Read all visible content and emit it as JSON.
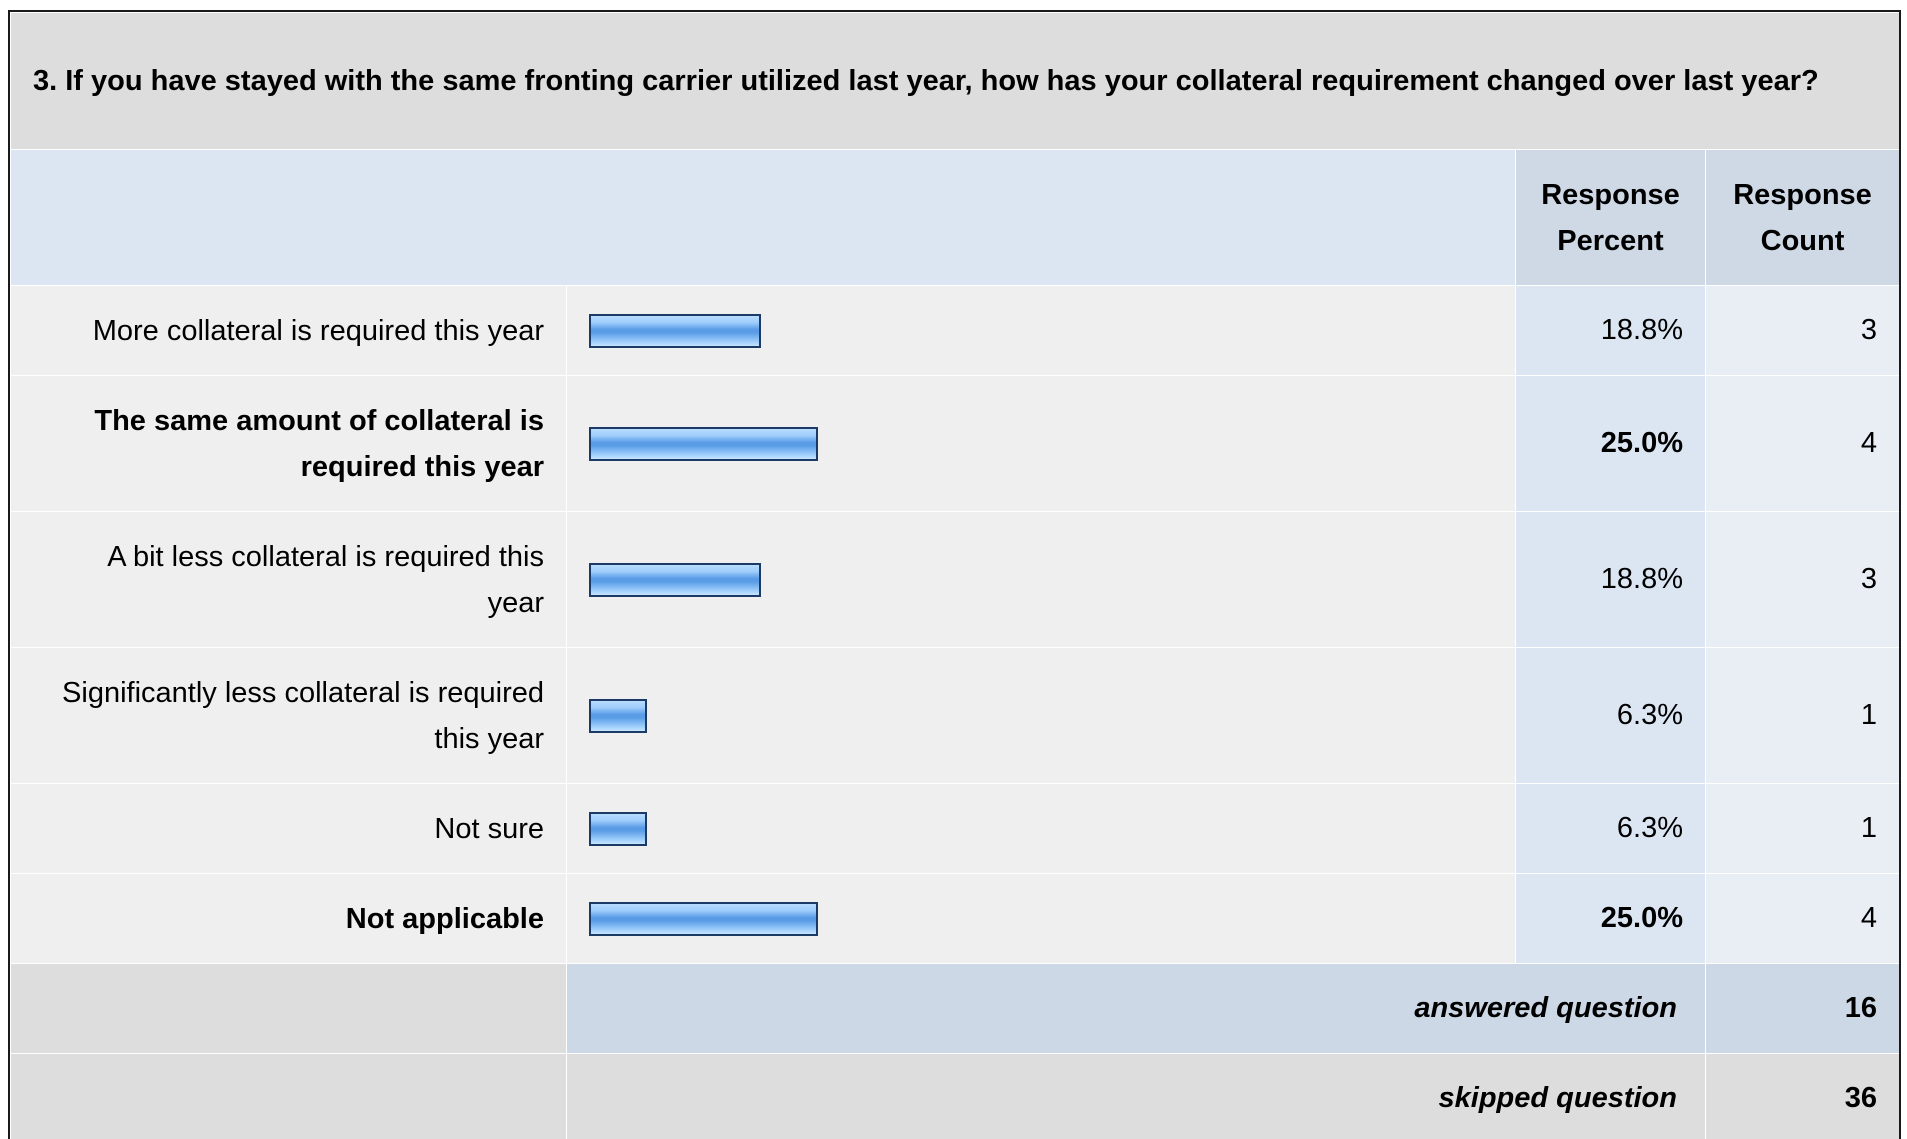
{
  "question": "3. If you have stayed with the same fronting carrier utilized last year, how has your collateral requirement changed over last year?",
  "header": {
    "percent": "Response Percent",
    "count": "Response Count"
  },
  "colors": {
    "bar_fill": "#5a9be6",
    "bar_border": "#1b3a66",
    "header_bg": "#dce6f2",
    "row_bg": "#efefef",
    "question_bg": "#dddddd"
  },
  "answers": [
    {
      "label": "More collateral is required this year",
      "percent": "18.8%",
      "count": "3"
    },
    {
      "label": "The same amount of collateral is required this year",
      "percent": "25.0%",
      "count": "4"
    },
    {
      "label": "A bit less collateral is required this year",
      "percent": "18.8%",
      "count": "3"
    },
    {
      "label": "Significantly less collateral is required this year",
      "percent": "6.3%",
      "count": "1"
    },
    {
      "label": "Not sure",
      "percent": "6.3%",
      "count": "1"
    },
    {
      "label": "Not applicable",
      "percent": "25.0%",
      "count": "4"
    }
  ],
  "summary": {
    "answered_label": "answered question",
    "answered_count": "16",
    "skipped_label": "skipped question",
    "skipped_count": "36"
  },
  "chart_data": {
    "type": "bar",
    "orientation": "horizontal",
    "categories": [
      "More collateral is required this year",
      "The same amount of collateral is required this year",
      "A bit less collateral is required this year",
      "Significantly less collateral is required this year",
      "Not sure",
      "Not applicable"
    ],
    "series": [
      {
        "values": [
          18.8,
          25.0,
          18.8,
          6.3,
          6.3,
          25.0
        ]
      }
    ],
    "counts": [
      3,
      4,
      3,
      1,
      1,
      4
    ],
    "xlim": [
      0,
      100
    ],
    "highlighted": [
      "The same amount of collateral is required this year",
      "Not applicable"
    ]
  }
}
